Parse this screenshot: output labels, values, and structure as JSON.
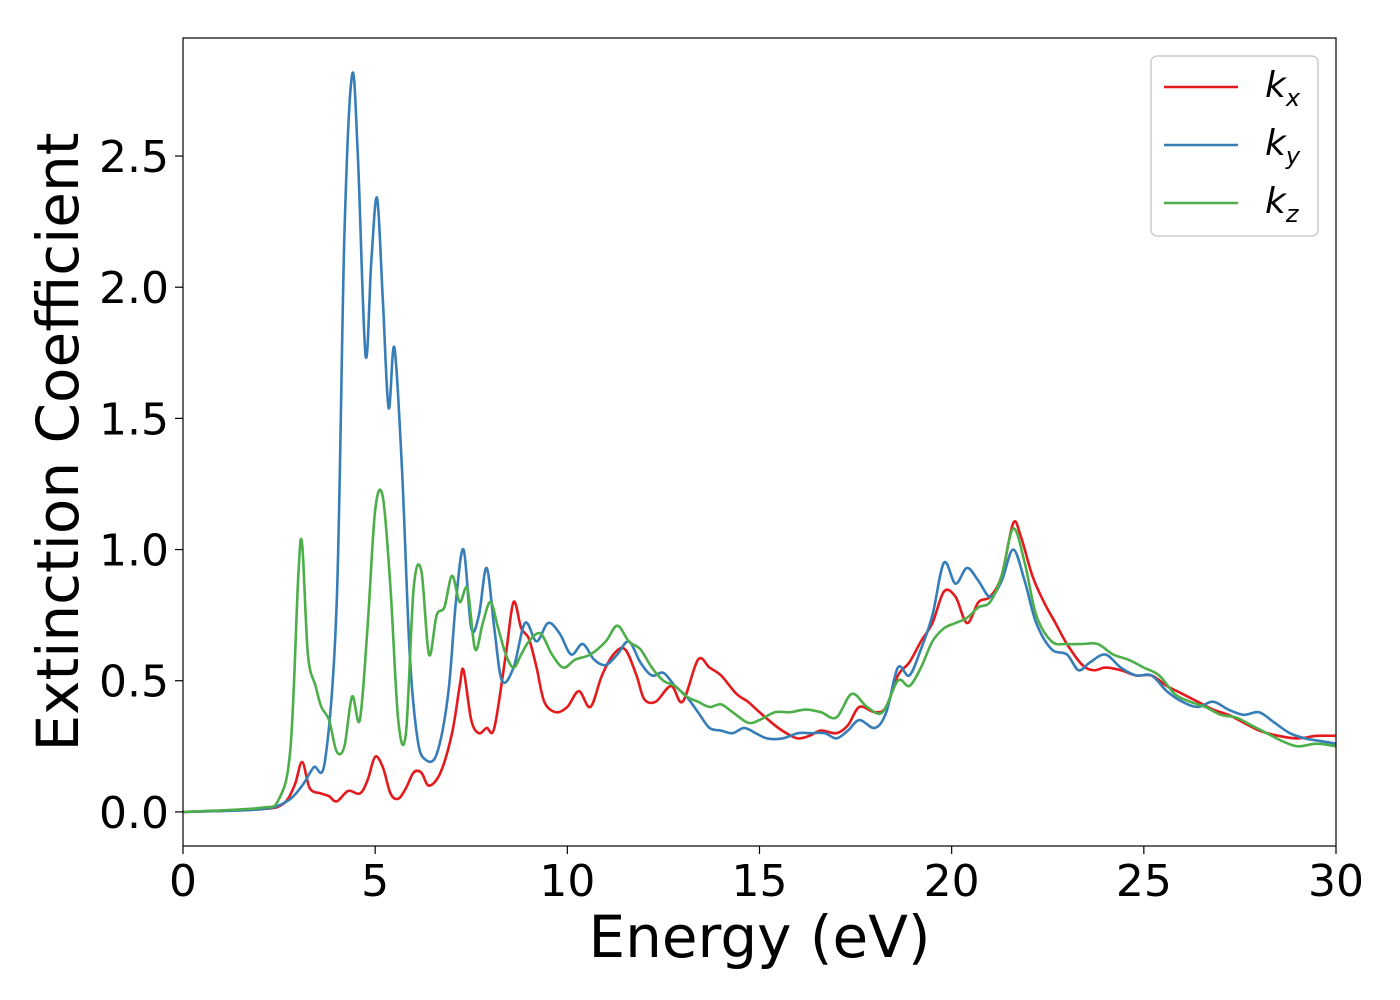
{
  "chart_data": {
    "type": "line",
    "title": "",
    "xlabel": "Energy (eV)",
    "ylabel": "Extinction Coefficient",
    "xlim": [
      0,
      30
    ],
    "ylim": [
      -0.13,
      2.95
    ],
    "xticks": [
      0,
      5,
      10,
      15,
      20,
      25,
      30
    ],
    "xtick_labels": [
      "0",
      "5",
      "10",
      "15",
      "20",
      "25",
      "30"
    ],
    "yticks": [
      0.0,
      0.5,
      1.0,
      1.5,
      2.0,
      2.5
    ],
    "ytick_labels": [
      "0.0",
      "0.5",
      "1.0",
      "1.5",
      "2.0",
      "2.5"
    ],
    "grid": false,
    "legend_position": "top-right",
    "series": [
      {
        "name": "k_x",
        "label_base": "k",
        "label_sub": "x",
        "color": "#e41a1c",
        "points": [
          [
            0,
            0
          ],
          [
            2,
            0.01
          ],
          [
            2.6,
            0.03
          ],
          [
            2.9,
            0.1
          ],
          [
            3.1,
            0.19
          ],
          [
            3.3,
            0.09
          ],
          [
            3.6,
            0.07
          ],
          [
            3.8,
            0.06
          ],
          [
            4.0,
            0.04
          ],
          [
            4.3,
            0.08
          ],
          [
            4.6,
            0.07
          ],
          [
            4.8,
            0.12
          ],
          [
            5.0,
            0.21
          ],
          [
            5.2,
            0.17
          ],
          [
            5.4,
            0.07
          ],
          [
            5.6,
            0.05
          ],
          [
            5.8,
            0.09
          ],
          [
            6.0,
            0.15
          ],
          [
            6.2,
            0.15
          ],
          [
            6.4,
            0.1
          ],
          [
            6.7,
            0.15
          ],
          [
            7.0,
            0.3
          ],
          [
            7.2,
            0.48
          ],
          [
            7.3,
            0.54
          ],
          [
            7.5,
            0.35
          ],
          [
            7.7,
            0.3
          ],
          [
            7.9,
            0.32
          ],
          [
            8.1,
            0.32
          ],
          [
            8.4,
            0.6
          ],
          [
            8.6,
            0.8
          ],
          [
            8.8,
            0.7
          ],
          [
            9.0,
            0.66
          ],
          [
            9.2,
            0.55
          ],
          [
            9.4,
            0.42
          ],
          [
            9.7,
            0.38
          ],
          [
            10.0,
            0.4
          ],
          [
            10.3,
            0.46
          ],
          [
            10.6,
            0.4
          ],
          [
            10.9,
            0.52
          ],
          [
            11.2,
            0.6
          ],
          [
            11.5,
            0.62
          ],
          [
            11.8,
            0.52
          ],
          [
            12.0,
            0.43
          ],
          [
            12.3,
            0.42
          ],
          [
            12.7,
            0.48
          ],
          [
            13.0,
            0.42
          ],
          [
            13.4,
            0.58
          ],
          [
            13.7,
            0.55
          ],
          [
            14.0,
            0.52
          ],
          [
            14.4,
            0.45
          ],
          [
            14.7,
            0.42
          ],
          [
            15.0,
            0.38
          ],
          [
            15.4,
            0.33
          ],
          [
            15.7,
            0.3
          ],
          [
            16.0,
            0.28
          ],
          [
            16.3,
            0.29
          ],
          [
            16.6,
            0.31
          ],
          [
            17.0,
            0.3
          ],
          [
            17.3,
            0.33
          ],
          [
            17.6,
            0.4
          ],
          [
            18.0,
            0.38
          ],
          [
            18.3,
            0.4
          ],
          [
            18.6,
            0.52
          ],
          [
            18.9,
            0.57
          ],
          [
            19.2,
            0.65
          ],
          [
            19.5,
            0.72
          ],
          [
            19.8,
            0.84
          ],
          [
            20.1,
            0.82
          ],
          [
            20.4,
            0.72
          ],
          [
            20.7,
            0.8
          ],
          [
            21.0,
            0.82
          ],
          [
            21.3,
            0.9
          ],
          [
            21.6,
            1.1
          ],
          [
            21.8,
            1.05
          ],
          [
            22.1,
            0.9
          ],
          [
            22.4,
            0.8
          ],
          [
            22.7,
            0.72
          ],
          [
            23.0,
            0.64
          ],
          [
            23.4,
            0.56
          ],
          [
            23.7,
            0.54
          ],
          [
            24.0,
            0.55
          ],
          [
            24.4,
            0.54
          ],
          [
            24.8,
            0.52
          ],
          [
            25.2,
            0.52
          ],
          [
            25.6,
            0.48
          ],
          [
            26.0,
            0.45
          ],
          [
            26.4,
            0.42
          ],
          [
            26.8,
            0.39
          ],
          [
            27.2,
            0.37
          ],
          [
            27.6,
            0.34
          ],
          [
            28.0,
            0.31
          ],
          [
            28.5,
            0.29
          ],
          [
            29.0,
            0.28
          ],
          [
            29.5,
            0.29
          ],
          [
            30.0,
            0.29
          ]
        ]
      },
      {
        "name": "k_y",
        "label_base": "k",
        "label_sub": "y",
        "color": "#377eb8",
        "points": [
          [
            0,
            0
          ],
          [
            2,
            0.01
          ],
          [
            2.7,
            0.04
          ],
          [
            3.1,
            0.1
          ],
          [
            3.4,
            0.17
          ],
          [
            3.7,
            0.2
          ],
          [
            4.0,
            0.8
          ],
          [
            4.2,
            2.2
          ],
          [
            4.4,
            2.81
          ],
          [
            4.55,
            2.5
          ],
          [
            4.75,
            1.74
          ],
          [
            4.9,
            2.1
          ],
          [
            5.05,
            2.34
          ],
          [
            5.2,
            1.95
          ],
          [
            5.35,
            1.54
          ],
          [
            5.5,
            1.77
          ],
          [
            5.7,
            1.3
          ],
          [
            5.9,
            0.6
          ],
          [
            6.1,
            0.28
          ],
          [
            6.3,
            0.2
          ],
          [
            6.6,
            0.22
          ],
          [
            6.9,
            0.45
          ],
          [
            7.1,
            0.8
          ],
          [
            7.3,
            1.0
          ],
          [
            7.5,
            0.7
          ],
          [
            7.7,
            0.75
          ],
          [
            7.9,
            0.93
          ],
          [
            8.1,
            0.7
          ],
          [
            8.3,
            0.5
          ],
          [
            8.6,
            0.55
          ],
          [
            8.9,
            0.72
          ],
          [
            9.2,
            0.65
          ],
          [
            9.5,
            0.72
          ],
          [
            9.8,
            0.68
          ],
          [
            10.1,
            0.6
          ],
          [
            10.4,
            0.64
          ],
          [
            10.7,
            0.58
          ],
          [
            11.0,
            0.56
          ],
          [
            11.3,
            0.6
          ],
          [
            11.6,
            0.65
          ],
          [
            11.9,
            0.57
          ],
          [
            12.2,
            0.52
          ],
          [
            12.5,
            0.53
          ],
          [
            12.8,
            0.48
          ],
          [
            13.1,
            0.44
          ],
          [
            13.4,
            0.38
          ],
          [
            13.7,
            0.32
          ],
          [
            14.0,
            0.31
          ],
          [
            14.3,
            0.3
          ],
          [
            14.6,
            0.32
          ],
          [
            14.9,
            0.3
          ],
          [
            15.2,
            0.28
          ],
          [
            15.6,
            0.28
          ],
          [
            16.0,
            0.3
          ],
          [
            16.3,
            0.3
          ],
          [
            16.7,
            0.3
          ],
          [
            17.0,
            0.28
          ],
          [
            17.3,
            0.31
          ],
          [
            17.6,
            0.35
          ],
          [
            18.0,
            0.32
          ],
          [
            18.3,
            0.38
          ],
          [
            18.6,
            0.55
          ],
          [
            18.9,
            0.52
          ],
          [
            19.2,
            0.62
          ],
          [
            19.5,
            0.75
          ],
          [
            19.8,
            0.95
          ],
          [
            20.1,
            0.87
          ],
          [
            20.4,
            0.93
          ],
          [
            20.7,
            0.88
          ],
          [
            21.0,
            0.82
          ],
          [
            21.3,
            0.88
          ],
          [
            21.6,
            1.0
          ],
          [
            21.9,
            0.88
          ],
          [
            22.2,
            0.72
          ],
          [
            22.6,
            0.62
          ],
          [
            23.0,
            0.6
          ],
          [
            23.3,
            0.54
          ],
          [
            23.6,
            0.57
          ],
          [
            24.0,
            0.6
          ],
          [
            24.4,
            0.55
          ],
          [
            24.8,
            0.52
          ],
          [
            25.2,
            0.52
          ],
          [
            25.6,
            0.46
          ],
          [
            26.0,
            0.42
          ],
          [
            26.4,
            0.4
          ],
          [
            26.8,
            0.42
          ],
          [
            27.2,
            0.39
          ],
          [
            27.6,
            0.37
          ],
          [
            28.0,
            0.38
          ],
          [
            28.4,
            0.34
          ],
          [
            28.8,
            0.3
          ],
          [
            29.2,
            0.28
          ],
          [
            29.6,
            0.27
          ],
          [
            30.0,
            0.26
          ]
        ]
      },
      {
        "name": "k_z",
        "label_base": "k",
        "label_sub": "z",
        "color": "#4daf4a",
        "points": [
          [
            0,
            0
          ],
          [
            2,
            0.015
          ],
          [
            2.5,
            0.05
          ],
          [
            2.8,
            0.25
          ],
          [
            3.0,
            0.9
          ],
          [
            3.1,
            1.02
          ],
          [
            3.25,
            0.6
          ],
          [
            3.45,
            0.48
          ],
          [
            3.6,
            0.4
          ],
          [
            3.8,
            0.35
          ],
          [
            4.0,
            0.23
          ],
          [
            4.2,
            0.25
          ],
          [
            4.4,
            0.44
          ],
          [
            4.6,
            0.35
          ],
          [
            4.8,
            0.7
          ],
          [
            5.0,
            1.15
          ],
          [
            5.2,
            1.2
          ],
          [
            5.4,
            0.85
          ],
          [
            5.6,
            0.35
          ],
          [
            5.8,
            0.3
          ],
          [
            6.0,
            0.85
          ],
          [
            6.2,
            0.92
          ],
          [
            6.4,
            0.6
          ],
          [
            6.6,
            0.75
          ],
          [
            6.8,
            0.78
          ],
          [
            7.0,
            0.9
          ],
          [
            7.2,
            0.8
          ],
          [
            7.4,
            0.85
          ],
          [
            7.6,
            0.62
          ],
          [
            7.8,
            0.72
          ],
          [
            8.0,
            0.8
          ],
          [
            8.2,
            0.7
          ],
          [
            8.4,
            0.6
          ],
          [
            8.6,
            0.55
          ],
          [
            8.8,
            0.6
          ],
          [
            9.0,
            0.65
          ],
          [
            9.3,
            0.68
          ],
          [
            9.6,
            0.6
          ],
          [
            9.9,
            0.55
          ],
          [
            10.2,
            0.58
          ],
          [
            10.6,
            0.6
          ],
          [
            11.0,
            0.65
          ],
          [
            11.3,
            0.71
          ],
          [
            11.6,
            0.65
          ],
          [
            11.9,
            0.62
          ],
          [
            12.2,
            0.55
          ],
          [
            12.5,
            0.5
          ],
          [
            12.8,
            0.48
          ],
          [
            13.1,
            0.44
          ],
          [
            13.4,
            0.42
          ],
          [
            13.7,
            0.4
          ],
          [
            14.0,
            0.41
          ],
          [
            14.3,
            0.38
          ],
          [
            14.7,
            0.34
          ],
          [
            15.0,
            0.35
          ],
          [
            15.4,
            0.38
          ],
          [
            15.8,
            0.38
          ],
          [
            16.2,
            0.39
          ],
          [
            16.6,
            0.38
          ],
          [
            17.0,
            0.36
          ],
          [
            17.4,
            0.45
          ],
          [
            17.8,
            0.4
          ],
          [
            18.2,
            0.38
          ],
          [
            18.6,
            0.5
          ],
          [
            18.9,
            0.48
          ],
          [
            19.2,
            0.55
          ],
          [
            19.5,
            0.65
          ],
          [
            19.8,
            0.7
          ],
          [
            20.1,
            0.72
          ],
          [
            20.4,
            0.74
          ],
          [
            20.7,
            0.78
          ],
          [
            21.0,
            0.8
          ],
          [
            21.3,
            0.9
          ],
          [
            21.6,
            1.08
          ],
          [
            21.9,
            0.95
          ],
          [
            22.2,
            0.75
          ],
          [
            22.6,
            0.65
          ],
          [
            23.0,
            0.64
          ],
          [
            23.4,
            0.64
          ],
          [
            23.8,
            0.64
          ],
          [
            24.2,
            0.6
          ],
          [
            24.6,
            0.58
          ],
          [
            25.0,
            0.55
          ],
          [
            25.4,
            0.52
          ],
          [
            25.8,
            0.45
          ],
          [
            26.2,
            0.42
          ],
          [
            26.6,
            0.4
          ],
          [
            27.0,
            0.37
          ],
          [
            27.4,
            0.36
          ],
          [
            27.8,
            0.33
          ],
          [
            28.2,
            0.3
          ],
          [
            28.6,
            0.27
          ],
          [
            29.0,
            0.25
          ],
          [
            29.5,
            0.26
          ],
          [
            30.0,
            0.25
          ]
        ]
      }
    ]
  }
}
